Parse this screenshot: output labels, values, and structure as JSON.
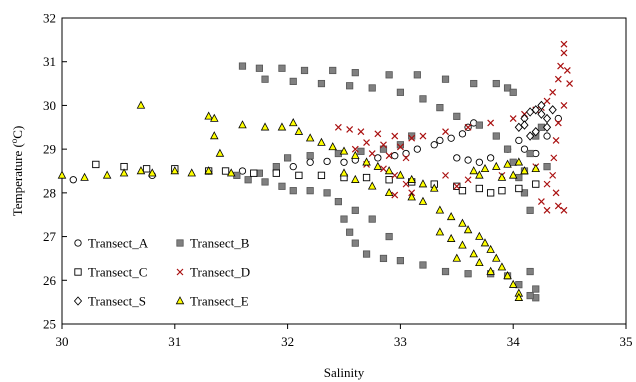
{
  "chart_data": {
    "type": "scatter",
    "xlabel": "Salinity",
    "ylabel_main": "Temperature (",
    "ylabel_sup": "o",
    "ylabel_tail": "C)",
    "xlim": [
      30,
      35
    ],
    "ylim": [
      25,
      32
    ],
    "x_ticks": [
      "30",
      "31",
      "32",
      "33",
      "34",
      "35"
    ],
    "y_ticks": [
      "25",
      "26",
      "27",
      "28",
      "29",
      "30",
      "31",
      "32"
    ],
    "grid": false,
    "legend_position": "bottom-left",
    "series": [
      {
        "name": "Transect_A",
        "marker": "circle-open",
        "color": "#000000",
        "fill": "#ffffff",
        "points": [
          [
            30.1,
            28.3
          ],
          [
            30.8,
            28.4
          ],
          [
            31.3,
            28.5
          ],
          [
            31.6,
            28.5
          ],
          [
            31.9,
            28.5
          ],
          [
            32.05,
            28.6
          ],
          [
            32.2,
            28.7
          ],
          [
            32.35,
            28.72
          ],
          [
            32.5,
            28.7
          ],
          [
            32.6,
            28.75
          ],
          [
            32.8,
            28.8
          ],
          [
            32.95,
            28.85
          ],
          [
            33.05,
            28.9
          ],
          [
            33.15,
            29.0
          ],
          [
            33.3,
            29.1
          ],
          [
            33.35,
            29.2
          ],
          [
            33.45,
            29.25
          ],
          [
            33.55,
            29.35
          ],
          [
            33.6,
            29.5
          ],
          [
            33.65,
            29.6
          ],
          [
            33.5,
            28.8
          ],
          [
            33.6,
            28.75
          ],
          [
            33.7,
            28.7
          ],
          [
            33.8,
            28.8
          ],
          [
            33.95,
            29.0
          ],
          [
            34.05,
            29.2
          ],
          [
            34.1,
            29.0
          ],
          [
            34.2,
            28.9
          ],
          [
            34.3,
            29.3
          ],
          [
            34.4,
            29.7
          ]
        ]
      },
      {
        "name": "Transect_B",
        "marker": "square-filled",
        "color": "#555555",
        "fill": "#808080",
        "points": [
          [
            31.6,
            30.9
          ],
          [
            31.75,
            30.85
          ],
          [
            31.95,
            30.85
          ],
          [
            32.15,
            30.8
          ],
          [
            32.4,
            30.8
          ],
          [
            32.6,
            30.75
          ],
          [
            32.9,
            30.7
          ],
          [
            33.15,
            30.7
          ],
          [
            33.4,
            30.6
          ],
          [
            33.65,
            30.5
          ],
          [
            33.85,
            30.5
          ],
          [
            33.95,
            30.4
          ],
          [
            34.0,
            30.3
          ],
          [
            31.8,
            30.6
          ],
          [
            32.05,
            30.55
          ],
          [
            32.3,
            30.5
          ],
          [
            32.55,
            30.45
          ],
          [
            32.75,
            30.4
          ],
          [
            33.0,
            30.3
          ],
          [
            33.2,
            30.15
          ],
          [
            33.35,
            29.95
          ],
          [
            33.5,
            29.75
          ],
          [
            33.7,
            29.55
          ],
          [
            33.85,
            29.3
          ],
          [
            33.95,
            29.0
          ],
          [
            34.0,
            28.7
          ],
          [
            34.05,
            28.35
          ],
          [
            34.1,
            28.0
          ],
          [
            34.15,
            27.6
          ],
          [
            31.55,
            28.4
          ],
          [
            31.75,
            28.45
          ],
          [
            31.9,
            28.6
          ],
          [
            32.0,
            28.8
          ],
          [
            32.2,
            28.85
          ],
          [
            32.45,
            28.9
          ],
          [
            32.65,
            28.95
          ],
          [
            32.85,
            29.0
          ],
          [
            33.0,
            29.1
          ],
          [
            33.1,
            29.3
          ],
          [
            31.65,
            28.3
          ],
          [
            31.8,
            28.25
          ],
          [
            31.95,
            28.15
          ],
          [
            32.05,
            28.05
          ],
          [
            32.2,
            28.05
          ],
          [
            32.35,
            28.0
          ],
          [
            32.45,
            27.8
          ],
          [
            32.6,
            27.6
          ],
          [
            32.75,
            27.4
          ],
          [
            32.9,
            27.0
          ],
          [
            32.5,
            27.4
          ],
          [
            32.55,
            27.1
          ],
          [
            32.6,
            26.85
          ],
          [
            32.7,
            26.6
          ],
          [
            32.85,
            26.5
          ],
          [
            33.0,
            26.45
          ],
          [
            33.2,
            26.35
          ],
          [
            33.4,
            26.2
          ],
          [
            33.6,
            26.15
          ],
          [
            33.8,
            26.15
          ],
          [
            33.95,
            26.1
          ],
          [
            34.15,
            26.2
          ],
          [
            34.2,
            25.8
          ],
          [
            34.2,
            25.6
          ],
          [
            34.15,
            25.65
          ],
          [
            34.05,
            25.9
          ],
          [
            34.1,
            28.5
          ],
          [
            34.15,
            28.9
          ],
          [
            34.2,
            29.3
          ],
          [
            34.25,
            29.5
          ],
          [
            34.3,
            28.6
          ]
        ]
      },
      {
        "name": "Transect_C",
        "marker": "square-open",
        "color": "#000000",
        "fill": "#ffffff",
        "points": [
          [
            30.3,
            28.65
          ],
          [
            30.55,
            28.6
          ],
          [
            30.75,
            28.55
          ],
          [
            31.0,
            28.55
          ],
          [
            31.3,
            28.5
          ],
          [
            31.45,
            28.5
          ],
          [
            31.7,
            28.45
          ],
          [
            31.9,
            28.45
          ],
          [
            32.1,
            28.4
          ],
          [
            32.3,
            28.4
          ],
          [
            32.5,
            28.35
          ],
          [
            32.7,
            28.35
          ],
          [
            32.9,
            28.3
          ],
          [
            33.1,
            28.25
          ],
          [
            33.3,
            28.2
          ],
          [
            33.5,
            28.15
          ],
          [
            33.7,
            28.1
          ],
          [
            33.9,
            28.05
          ],
          [
            34.05,
            28.1
          ],
          [
            34.2,
            28.2
          ],
          [
            33.55,
            28.05
          ],
          [
            33.8,
            28.0
          ]
        ]
      },
      {
        "name": "Transect_D",
        "marker": "x",
        "color": "#aa1111",
        "fill": "none",
        "points": [
          [
            32.45,
            29.5
          ],
          [
            32.55,
            29.45
          ],
          [
            32.65,
            29.4
          ],
          [
            32.8,
            29.35
          ],
          [
            32.95,
            29.3
          ],
          [
            33.1,
            29.25
          ],
          [
            32.7,
            29.15
          ],
          [
            32.85,
            29.1
          ],
          [
            33.0,
            29.05
          ],
          [
            32.6,
            29.0
          ],
          [
            32.75,
            28.9
          ],
          [
            32.9,
            28.85
          ],
          [
            33.05,
            28.8
          ],
          [
            32.7,
            28.65
          ],
          [
            32.85,
            28.55
          ],
          [
            32.95,
            28.4
          ],
          [
            33.05,
            28.2
          ],
          [
            33.1,
            28.0
          ],
          [
            32.95,
            27.95
          ],
          [
            33.2,
            29.3
          ],
          [
            33.4,
            29.4
          ],
          [
            33.6,
            29.5
          ],
          [
            33.8,
            29.6
          ],
          [
            34.0,
            29.7
          ],
          [
            34.1,
            29.8
          ],
          [
            34.2,
            29.9
          ],
          [
            34.25,
            29.95
          ],
          [
            34.3,
            30.1
          ],
          [
            34.35,
            30.3
          ],
          [
            34.4,
            30.6
          ],
          [
            34.42,
            30.9
          ],
          [
            34.45,
            31.2
          ],
          [
            34.45,
            31.4
          ],
          [
            34.48,
            30.8
          ],
          [
            34.5,
            30.5
          ],
          [
            34.45,
            30.0
          ],
          [
            34.4,
            29.6
          ],
          [
            34.38,
            29.2
          ],
          [
            34.36,
            28.8
          ],
          [
            34.35,
            28.4
          ],
          [
            34.38,
            28.0
          ],
          [
            34.4,
            27.7
          ],
          [
            34.45,
            27.6
          ],
          [
            34.3,
            27.6
          ],
          [
            34.25,
            27.8
          ],
          [
            34.3,
            28.2
          ],
          [
            34.2,
            28.6
          ],
          [
            33.9,
            28.4
          ],
          [
            33.6,
            28.3
          ],
          [
            33.4,
            28.4
          ],
          [
            33.5,
            28.15
          ]
        ]
      },
      {
        "name": "Transect_S",
        "marker": "diamond-open",
        "color": "#000000",
        "fill": "#ffffff",
        "points": [
          [
            34.05,
            29.5
          ],
          [
            34.1,
            29.7
          ],
          [
            34.15,
            29.85
          ],
          [
            34.2,
            29.9
          ],
          [
            34.25,
            29.8
          ],
          [
            34.3,
            29.7
          ],
          [
            34.35,
            29.9
          ],
          [
            34.3,
            29.5
          ],
          [
            34.2,
            29.4
          ],
          [
            34.15,
            29.3
          ],
          [
            34.1,
            29.55
          ],
          [
            34.25,
            30.0
          ]
        ]
      },
      {
        "name": "Transect_E",
        "marker": "triangle-filled",
        "color": "#000000",
        "fill": "#ffff00",
        "points": [
          [
            30.0,
            28.4
          ],
          [
            30.2,
            28.35
          ],
          [
            30.4,
            28.4
          ],
          [
            30.55,
            28.45
          ],
          [
            30.7,
            28.5
          ],
          [
            30.8,
            28.45
          ],
          [
            31.0,
            28.5
          ],
          [
            31.15,
            28.45
          ],
          [
            31.3,
            28.5
          ],
          [
            31.5,
            28.45
          ],
          [
            30.7,
            30.0
          ],
          [
            31.3,
            29.75
          ],
          [
            31.35,
            29.7
          ],
          [
            31.35,
            29.3
          ],
          [
            31.4,
            28.9
          ],
          [
            31.6,
            29.55
          ],
          [
            31.8,
            29.5
          ],
          [
            31.95,
            29.5
          ],
          [
            32.05,
            29.6
          ],
          [
            32.1,
            29.4
          ],
          [
            32.2,
            29.25
          ],
          [
            32.3,
            29.15
          ],
          [
            32.4,
            29.05
          ],
          [
            32.5,
            28.95
          ],
          [
            32.6,
            28.85
          ],
          [
            32.7,
            28.7
          ],
          [
            32.8,
            28.6
          ],
          [
            32.9,
            28.5
          ],
          [
            33.0,
            28.4
          ],
          [
            33.1,
            28.3
          ],
          [
            33.2,
            28.2
          ],
          [
            33.3,
            28.1
          ],
          [
            32.9,
            28.0
          ],
          [
            32.75,
            28.15
          ],
          [
            32.6,
            28.3
          ],
          [
            32.5,
            28.45
          ],
          [
            33.1,
            27.9
          ],
          [
            33.2,
            27.8
          ],
          [
            33.35,
            27.6
          ],
          [
            33.45,
            27.45
          ],
          [
            33.55,
            27.3
          ],
          [
            33.6,
            27.15
          ],
          [
            33.7,
            27.0
          ],
          [
            33.75,
            26.85
          ],
          [
            33.8,
            26.7
          ],
          [
            33.85,
            26.5
          ],
          [
            33.9,
            26.3
          ],
          [
            33.95,
            26.1
          ],
          [
            34.0,
            25.9
          ],
          [
            34.05,
            25.7
          ],
          [
            34.05,
            25.6
          ],
          [
            33.35,
            27.1
          ],
          [
            33.45,
            26.95
          ],
          [
            33.55,
            26.8
          ],
          [
            33.65,
            26.6
          ],
          [
            33.7,
            26.4
          ],
          [
            33.8,
            26.2
          ],
          [
            33.5,
            26.5
          ],
          [
            33.65,
            28.5
          ],
          [
            33.75,
            28.55
          ],
          [
            33.85,
            28.6
          ],
          [
            33.95,
            28.65
          ],
          [
            34.05,
            28.7
          ],
          [
            34.1,
            28.5
          ],
          [
            34.2,
            28.55
          ],
          [
            34.0,
            28.4
          ],
          [
            33.9,
            28.35
          ],
          [
            33.7,
            28.4
          ]
        ]
      }
    ]
  }
}
